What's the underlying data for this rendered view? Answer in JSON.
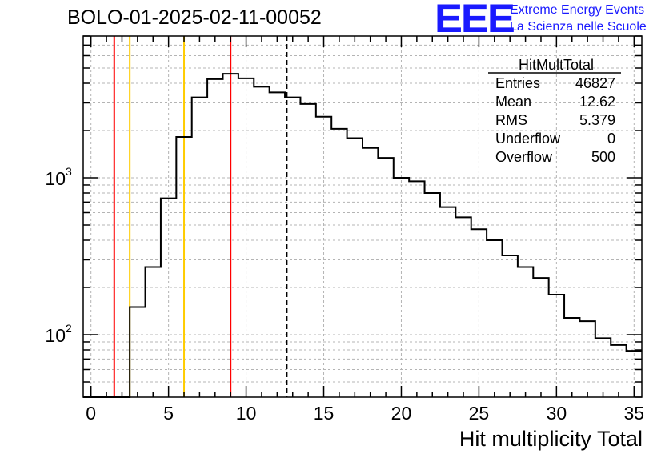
{
  "title": "BOLO-01-2025-02-11-00052",
  "logo": {
    "mark": "EEE",
    "line1": "Extreme Energy Events",
    "line2": "La Scienza nelle Scuole"
  },
  "colors": {
    "logo": "#1a1aff",
    "red_line": "#ff0000",
    "yellow_line": "#ffcc00",
    "hist": "#000000",
    "grid": "#b4b4b4"
  },
  "stats_box": {
    "name": "HitMultTotal",
    "rows": [
      {
        "label": "Entries",
        "value": "46827"
      },
      {
        "label": "Mean",
        "value": "12.62"
      },
      {
        "label": "RMS",
        "value": "5.379"
      },
      {
        "label": "Underflow",
        "value": "0"
      },
      {
        "label": "Overflow",
        "value": "500"
      }
    ]
  },
  "chart_data": {
    "type": "histogram",
    "title": "BOLO-01-2025-02-11-00052",
    "xlabel": "Hit multiplicity Total",
    "ylabel": "",
    "xlim": [
      -0.5,
      35.5
    ],
    "ylim": [
      40,
      8000
    ],
    "yscale": "log",
    "grid": true,
    "bin_width": 1,
    "bin_edges_start": -0.5,
    "x_ticks": [
      0,
      5,
      10,
      15,
      20,
      25,
      30,
      35
    ],
    "y_ticks": [
      {
        "value": 100,
        "base": "10",
        "exp": "2"
      },
      {
        "value": 1000,
        "base": "10",
        "exp": "3"
      }
    ],
    "values": [
      0,
      0,
      0,
      150,
      270,
      740,
      1820,
      3250,
      4250,
      4600,
      4300,
      3800,
      3500,
      3250,
      2950,
      2450,
      2050,
      1790,
      1550,
      1340,
      1000,
      950,
      800,
      650,
      560,
      470,
      400,
      320,
      270,
      230,
      180,
      128,
      122,
      95,
      86,
      79
    ],
    "vlines": [
      {
        "x": 1.5,
        "color": "#ff0000",
        "style": "solid"
      },
      {
        "x": 2.5,
        "color": "#ffcc00",
        "style": "solid"
      },
      {
        "x": 6.0,
        "color": "#ffcc00",
        "style": "solid"
      },
      {
        "x": 9.0,
        "color": "#ff0000",
        "style": "solid"
      },
      {
        "x": 12.62,
        "color": "#000000",
        "style": "dashed"
      }
    ]
  }
}
